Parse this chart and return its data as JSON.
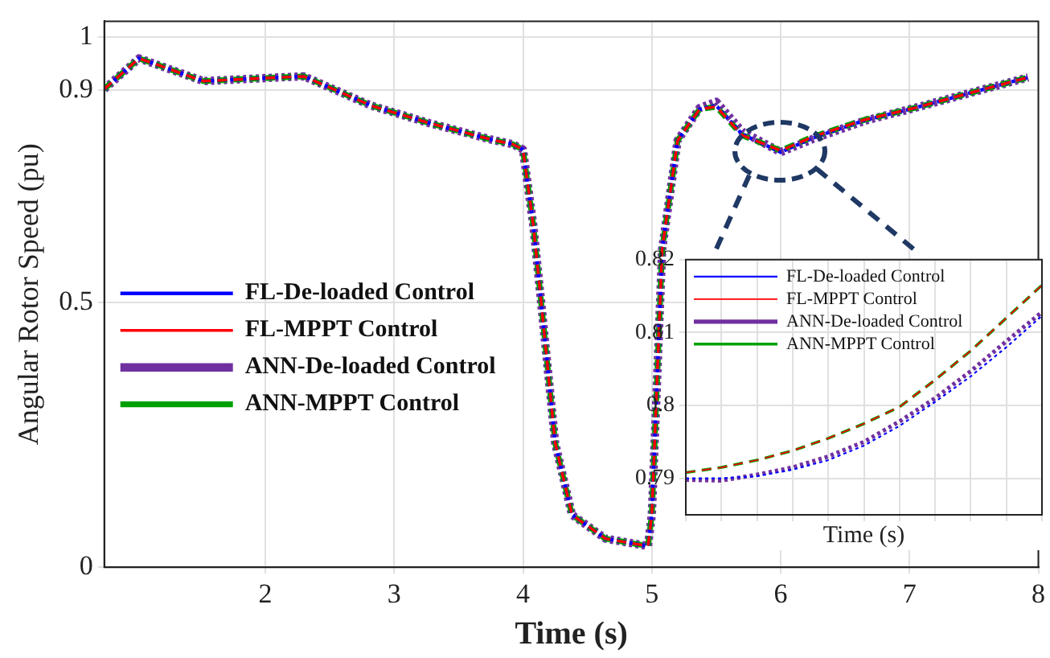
{
  "chart_data": [
    {
      "type": "line",
      "xlabel": "Time (s)",
      "ylabel": "Angular Rotor Speed (pu)",
      "xlim": [
        0.75,
        8
      ],
      "xticks": [
        2,
        3,
        4,
        5,
        6,
        7,
        8
      ],
      "ylim": [
        0,
        1.03
      ],
      "yticks": [
        0,
        0.5,
        0.9,
        1
      ],
      "grid": true,
      "legend": "left",
      "x": [
        0.75,
        1.02,
        1.52,
        2.1,
        2.3,
        2.82,
        3.27,
        3.75,
        3.92,
        4.0,
        4.08,
        4.14,
        4.25,
        4.38,
        4.64,
        4.97,
        5.0,
        5.08,
        5.2,
        5.37,
        5.5,
        5.7,
        6.0,
        6.25,
        6.65,
        7.05,
        7.55,
        7.92
      ],
      "series": [
        {
          "name": "FL-De-loaded Control",
          "color": "#0000ff",
          "line_style": "dotted",
          "values": [
            0.902,
            0.96,
            0.917,
            0.924,
            0.926,
            0.871,
            0.838,
            0.807,
            0.798,
            0.788,
            0.645,
            0.502,
            0.234,
            0.099,
            0.054,
            0.04,
            0.099,
            0.6,
            0.805,
            0.864,
            0.871,
            0.817,
            0.783,
            0.81,
            0.843,
            0.867,
            0.9,
            0.924
          ]
        },
        {
          "name": "FL-MPPT Control",
          "color": "#ff0000",
          "line_style": "dashed",
          "values": [
            0.902,
            0.96,
            0.917,
            0.924,
            0.926,
            0.871,
            0.838,
            0.807,
            0.798,
            0.788,
            0.645,
            0.502,
            0.234,
            0.099,
            0.054,
            0.04,
            0.099,
            0.6,
            0.805,
            0.864,
            0.869,
            0.815,
            0.786,
            0.812,
            0.844,
            0.867,
            0.9,
            0.924
          ]
        },
        {
          "name": "ANN-De-loaded Control",
          "color": "#7030a0",
          "line_style": "dotted",
          "values": [
            0.902,
            0.96,
            0.917,
            0.924,
            0.926,
            0.871,
            0.838,
            0.807,
            0.798,
            0.788,
            0.645,
            0.502,
            0.234,
            0.099,
            0.054,
            0.04,
            0.099,
            0.6,
            0.805,
            0.866,
            0.878,
            0.822,
            0.783,
            0.808,
            0.842,
            0.867,
            0.9,
            0.924
          ]
        },
        {
          "name": "ANN-MPPT Control",
          "color": "#00a000",
          "line_style": "dashed",
          "values": [
            0.902,
            0.96,
            0.917,
            0.924,
            0.926,
            0.871,
            0.838,
            0.807,
            0.798,
            0.788,
            0.645,
            0.502,
            0.234,
            0.099,
            0.054,
            0.04,
            0.099,
            0.6,
            0.805,
            0.864,
            0.869,
            0.815,
            0.786,
            0.812,
            0.844,
            0.867,
            0.9,
            0.924
          ]
        }
      ]
    },
    {
      "type": "line",
      "xlabel": "Time (s)",
      "ylim": [
        0.785,
        0.82
      ],
      "yticks": [
        0.79,
        0.8,
        0.81,
        0.82
      ],
      "grid": true,
      "legend": "top left",
      "tick_labels": "y",
      "categories": [
        null,
        null,
        null,
        null,
        null,
        null,
        null,
        null,
        null,
        null,
        null
      ],
      "series": [
        {
          "name": "FL-De-loaded Control",
          "color": "#0000ff",
          "line_style": "dotted",
          "values": [
            0.79,
            0.79,
            0.7903,
            0.7912,
            0.7925,
            0.7945,
            0.7972,
            0.8005,
            0.804,
            0.808,
            0.8123
          ]
        },
        {
          "name": "FL-MPPT Control",
          "color": "#ff0000",
          "line_style": "dashed",
          "values": [
            0.7908,
            0.7915,
            0.7925,
            0.7938,
            0.7955,
            0.7975,
            0.7998,
            0.8035,
            0.8075,
            0.812,
            0.8165
          ]
        },
        {
          "name": "ANN-De-loaded Control",
          "color": "#7030a0",
          "line_style": "dotted",
          "values": [
            0.7898,
            0.7897,
            0.7905,
            0.7915,
            0.793,
            0.795,
            0.7978,
            0.801,
            0.8047,
            0.8088,
            0.8128
          ]
        },
        {
          "name": "ANN-MPPT Control",
          "color": "#00a000",
          "line_style": "dashed",
          "values": [
            0.7908,
            0.7915,
            0.7925,
            0.7938,
            0.7955,
            0.7975,
            0.7998,
            0.8035,
            0.8075,
            0.812,
            0.8165
          ]
        }
      ]
    }
  ]
}
